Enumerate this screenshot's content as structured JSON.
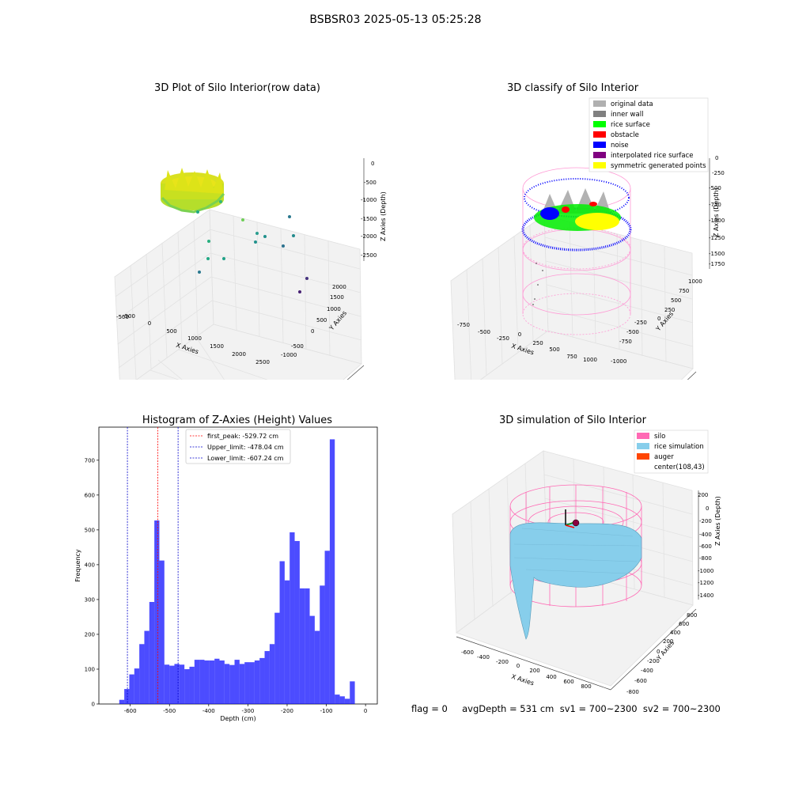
{
  "suptitle": "BSBSR03 2025-05-13 05:25:28",
  "panel1": {
    "title": "3D Plot of Silo Interior(row data)",
    "xlabel": "X Axies",
    "ylabel": "Y Axies",
    "zlabel": "Z Axies (Depth)",
    "xticks": [
      "-500",
      "0",
      "500",
      "1000",
      "1500",
      "2000",
      "2500"
    ],
    "yticks": [
      "-1000",
      "-500",
      "0",
      "500",
      "1000",
      "1500",
      "2000"
    ],
    "zticks": [
      "0",
      "-500",
      "-1000",
      "-1500",
      "-2000",
      "-2500"
    ]
  },
  "panel2": {
    "title": "3D classify of Silo Interior",
    "xlabel": "X Axies",
    "ylabel": "Y Axies",
    "zlabel": "Z Axies (Depth)",
    "xticks": [
      "-750",
      "-500",
      "-250",
      "0",
      "250",
      "500",
      "750",
      "1000"
    ],
    "yticks": [
      "-1000",
      "-750",
      "-500",
      "-250",
      "0",
      "250",
      "500",
      "750",
      "1000"
    ],
    "zticks": [
      "0",
      "-250",
      "-500",
      "-750",
      "-1000",
      "-1250",
      "-1500",
      "-1750"
    ],
    "legend": [
      {
        "label": "original data",
        "color": "#b0b0b0"
      },
      {
        "label": "inner wall",
        "color": "#808080"
      },
      {
        "label": "rice surface",
        "color": "#00ff00"
      },
      {
        "label": "obstacle",
        "color": "#ff0000"
      },
      {
        "label": "noise",
        "color": "#0000ff"
      },
      {
        "label": "interpolated rice surface",
        "color": "#800080"
      },
      {
        "label": "symmetric generated points",
        "color": "#ffff00"
      }
    ]
  },
  "panel4": {
    "title": "3D simulation of Silo Interior",
    "xlabel": "X Axies",
    "ylabel": "Y Axies",
    "zlabel": "Z Axies (Depth)",
    "xticks": [
      "-600",
      "-400",
      "-200",
      "0",
      "200",
      "400",
      "600",
      "800"
    ],
    "yticks": [
      "-800",
      "-600",
      "-400",
      "-200",
      "0",
      "200",
      "400",
      "600",
      "800"
    ],
    "zticks": [
      "200",
      "0",
      "-200",
      "-400",
      "-600",
      "-800",
      "-1000",
      "-1200",
      "-1400"
    ],
    "legend": [
      {
        "label": "silo",
        "color": "#ff69b4"
      },
      {
        "label": "rice simulation",
        "color": "#87ceeb"
      },
      {
        "label": "auger",
        "color": "#ff4500"
      },
      {
        "label": "center(108,43)",
        "color": "#ffffff"
      }
    ]
  },
  "footer": "flag = 0     avgDepth = 531 cm  sv1 = 700~2300  sv2 = 700~2300",
  "chart_data": {
    "type": "bar",
    "title": "Histogram of Z-Axies (Height) Values",
    "xlabel": "Depth (cm)",
    "ylabel": "Frequency",
    "xlim": [
      -680,
      30
    ],
    "ylim": [
      0,
      795
    ],
    "xticks": [
      -600,
      -500,
      -400,
      -300,
      -200,
      -100,
      0
    ],
    "yticks": [
      0,
      100,
      200,
      300,
      400,
      500,
      600,
      700
    ],
    "bin_start": -628,
    "bin_width": 12.78,
    "values": [
      12,
      43,
      85,
      102,
      172,
      210,
      293,
      527,
      412,
      113,
      110,
      115,
      113,
      100,
      107,
      127,
      127,
      125,
      125,
      130,
      125,
      115,
      112,
      127,
      115,
      120,
      120,
      125,
      132,
      152,
      172,
      262,
      410,
      355,
      493,
      468,
      332,
      332,
      253,
      210,
      340,
      440,
      760,
      27,
      22,
      15,
      65
    ],
    "color": "#0000ff",
    "lines": [
      {
        "label": "first_peak: -529.72 cm",
        "x": -529.72,
        "color": "#ff0000"
      },
      {
        "label": "Upper_limit: -478.04 cm",
        "x": -478.04,
        "color": "#0000cc"
      },
      {
        "label": "Lower_limit: -607.24 cm",
        "x": -607.24,
        "color": "#0000cc"
      }
    ]
  }
}
